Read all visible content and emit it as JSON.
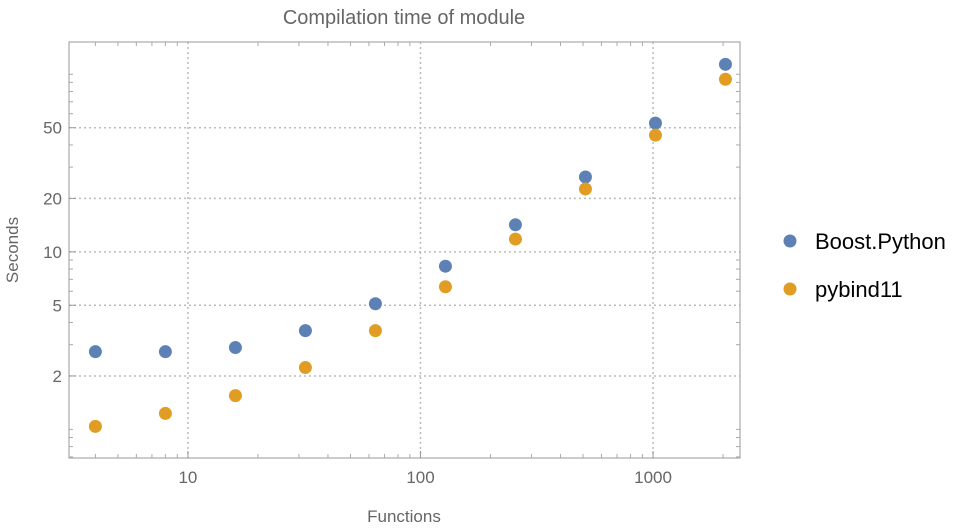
{
  "chart_data": {
    "type": "scatter",
    "title": "Compilation time of module",
    "xlabel": "Functions",
    "ylabel": "Seconds",
    "xscale": "log",
    "yscale": "log",
    "xlim": [
      3.08,
      2365
    ],
    "ylim": [
      0.69,
      152
    ],
    "grid": true,
    "legend_position": "right",
    "x_ticks": [
      {
        "value": 10,
        "label": "10"
      },
      {
        "value": 100,
        "label": "100"
      },
      {
        "value": 1000,
        "label": "1000"
      }
    ],
    "y_ticks": [
      {
        "value": 2,
        "label": "2"
      },
      {
        "value": 5,
        "label": "5"
      },
      {
        "value": 10,
        "label": "10"
      },
      {
        "value": 20,
        "label": "20"
      },
      {
        "value": 50,
        "label": "50"
      }
    ],
    "x": [
      4,
      8,
      16,
      32,
      64,
      128,
      256,
      512,
      1024,
      2048
    ],
    "series": [
      {
        "name": "Boost.Python",
        "color": "#5E81B5",
        "values": [
          2.74,
          2.74,
          2.89,
          3.6,
          5.1,
          8.3,
          14.2,
          26.4,
          53.1,
          113.8
        ]
      },
      {
        "name": "pybind11",
        "color": "#E19C24",
        "values": [
          1.04,
          1.23,
          1.55,
          2.23,
          3.6,
          6.36,
          11.8,
          22.6,
          45.4,
          93.8
        ]
      }
    ]
  }
}
